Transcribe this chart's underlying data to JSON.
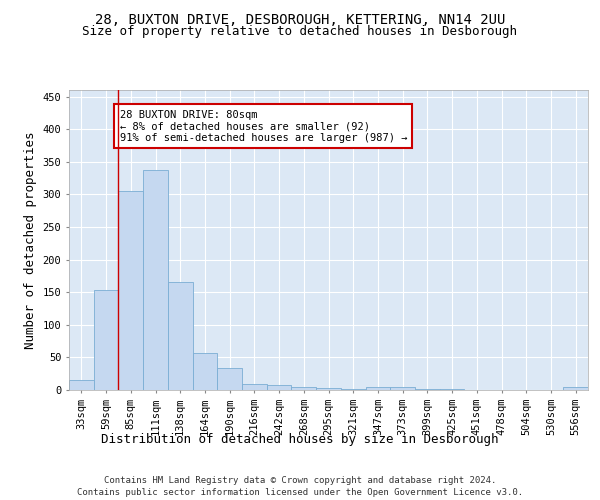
{
  "title1": "28, BUXTON DRIVE, DESBOROUGH, KETTERING, NN14 2UU",
  "title2": "Size of property relative to detached houses in Desborough",
  "xlabel": "Distribution of detached houses by size in Desborough",
  "ylabel": "Number of detached properties",
  "footnote1": "Contains HM Land Registry data © Crown copyright and database right 2024.",
  "footnote2": "Contains public sector information licensed under the Open Government Licence v3.0.",
  "bar_labels": [
    "33sqm",
    "59sqm",
    "85sqm",
    "111sqm",
    "138sqm",
    "164sqm",
    "190sqm",
    "216sqm",
    "242sqm",
    "268sqm",
    "295sqm",
    "321sqm",
    "347sqm",
    "373sqm",
    "399sqm",
    "425sqm",
    "451sqm",
    "478sqm",
    "504sqm",
    "530sqm",
    "556sqm"
  ],
  "bar_values": [
    15,
    153,
    305,
    338,
    165,
    57,
    33,
    9,
    8,
    5,
    3,
    1,
    5,
    5,
    2,
    1,
    0,
    0,
    0,
    0,
    4
  ],
  "bar_color": "#c5d8f0",
  "bar_edge_color": "#7aadd4",
  "red_line_x": 1.5,
  "annotation_text": "28 BUXTON DRIVE: 80sqm\n← 8% of detached houses are smaller (92)\n91% of semi-detached houses are larger (987) →",
  "annotation_box_facecolor": "#ffffff",
  "annotation_box_edgecolor": "#cc0000",
  "ylim": [
    0,
    460
  ],
  "yticks": [
    0,
    50,
    100,
    150,
    200,
    250,
    300,
    350,
    400,
    450
  ],
  "bg_color": "#dce8f5",
  "fig_bg": "#ffffff",
  "grid_color": "#ffffff",
  "title_fontsize": 10,
  "subtitle_fontsize": 9,
  "tick_fontsize": 7.5,
  "label_fontsize": 9,
  "footnote_fontsize": 6.5
}
